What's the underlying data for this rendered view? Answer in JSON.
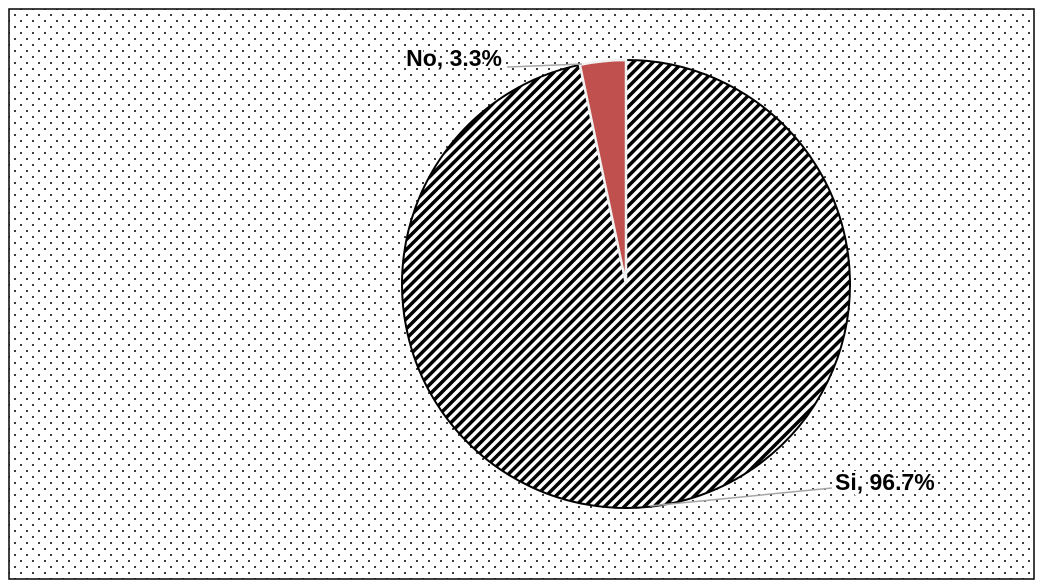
{
  "chart_data": {
    "type": "pie",
    "categories": [
      "Si",
      "No"
    ],
    "values": [
      96.7,
      3.3
    ],
    "value_labels": [
      "Si, 96.7%",
      "No, 3.3%"
    ],
    "colors": [
      "#000000",
      "#c0504d"
    ],
    "hatch": [
      "diagonal",
      "none"
    ]
  }
}
